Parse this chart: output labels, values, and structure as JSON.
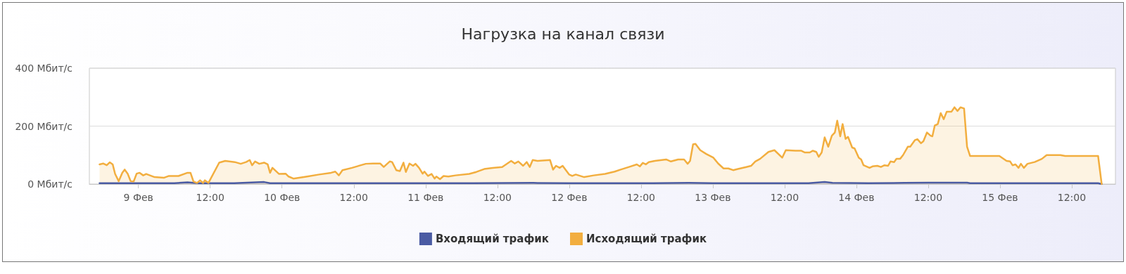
{
  "chart_data": {
    "type": "area",
    "title": "Нагрузка на канал связи",
    "xlim": [
      "--02-08T15:48",
      "--02-15T19:18"
    ],
    "xticks": [
      {
        "value": "--02-09",
        "label": "9 Фев"
      },
      {
        "value": "--02-09T12:00",
        "label": "12:00"
      },
      {
        "value": "--02-10",
        "label": "10 Фев"
      },
      {
        "value": "--02-10T12:00",
        "label": "12:00"
      },
      {
        "value": "--02-11",
        "label": "11 Фев"
      },
      {
        "value": "--02-11T12:00",
        "label": "12:00"
      },
      {
        "value": "--02-12",
        "label": "12 Фев"
      },
      {
        "value": "--02-12T12:00",
        "label": "12:00"
      },
      {
        "value": "--02-13",
        "label": "13 Фев"
      },
      {
        "value": "--02-13T12:00",
        "label": "12:00"
      },
      {
        "value": "--02-14",
        "label": "14 Фев"
      },
      {
        "value": "--02-14T12:00",
        "label": "12:00"
      },
      {
        "value": "--02-15",
        "label": "15 Фев"
      },
      {
        "value": "--02-15T12:00",
        "label": "12:00"
      }
    ],
    "ylim": [
      0,
      400
    ],
    "yticks": [
      {
        "value": 0,
        "label": "0 Мбит/с"
      },
      {
        "value": 200,
        "label": "200 Мбит/с"
      },
      {
        "value": 400,
        "label": "400 Мбит/с"
      }
    ],
    "grid": "y",
    "legend": "bottom",
    "marker": "none",
    "line_style": "solid",
    "series": [
      {
        "name": "Входящий трафик",
        "color": "#4a5ba3",
        "x": [
          "--02-08T17:30",
          "--02-09T00:00",
          "--02-09T06:00",
          "--02-09T08:12",
          "--02-09T10:00",
          "--02-09T16:00",
          "--02-09T21:00",
          "--02-09T22:00",
          "--02-10T04:00",
          "--02-10T12:00",
          "--02-10T22:00",
          "--02-11T08:00",
          "--02-11T18:00",
          "--02-12T00:00",
          "--02-12T08:00",
          "--02-12T14:00",
          "--02-12T20:00",
          "--02-13T00:00",
          "--02-13T08:00",
          "--02-13T16:00",
          "--02-13T18:42",
          "--02-13T20:00",
          "--02-14T02:00",
          "--02-14T08:00",
          "--02-14T12:00",
          "--02-14T16:00",
          "--02-14T18:30",
          "--02-14T19:00",
          "--02-15T02:00",
          "--02-15T10:00",
          "--02-15T16:24",
          "--02-15T17:00"
        ],
        "values": [
          3,
          3,
          3,
          6,
          3,
          3,
          7,
          3,
          3,
          3,
          3,
          3,
          4,
          3,
          3,
          3,
          4,
          3,
          3,
          3,
          7,
          4,
          3,
          4,
          5,
          5,
          5,
          3,
          3,
          3,
          3,
          0
        ]
      },
      {
        "name": "Исходящий трафик",
        "color": "#f2ae3f",
        "x": [
          "--02-08T17:30",
          "--02-08T18:06",
          "--02-08T18:42",
          "--02-08T19:12",
          "--02-08T19:42",
          "--02-08T20:06",
          "--02-08T20:42",
          "--02-08T21:18",
          "--02-08T21:42",
          "--02-08T22:12",
          "--02-08T22:42",
          "--02-08T23:12",
          "--02-08T23:42",
          "--02-09T00:12",
          "--02-09T00:48",
          "--02-09T01:18",
          "--02-09T02:42",
          "--02-09T04:18",
          "--02-09T05:06",
          "--02-09T06:42",
          "--02-09T08:12",
          "--02-09T08:42",
          "--02-09T09:12",
          "--02-09T09:48",
          "--02-09T10:18",
          "--02-09T10:48",
          "--02-09T11:06",
          "--02-09T11:42",
          "--02-09T13:30",
          "--02-09T14:30",
          "--02-09T16:06",
          "--02-09T17:06",
          "--02-09T18:00",
          "--02-09T18:36",
          "--02-09T19:00",
          "--02-09T19:30",
          "--02-09T20:12",
          "--02-09T21:00",
          "--02-09T21:36",
          "--02-09T22:00",
          "--02-09T22:24",
          "--02-09T23:30",
          "--02-10T00:36",
          "--02-10T01:06",
          "--02-10T01:54",
          "--02-10T04:12",
          "--02-10T06:12",
          "--02-10T08:12",
          "--02-10T08:54",
          "--02-10T09:30",
          "--02-10T10:06",
          "--02-10T11:42",
          "--02-10T12:30",
          "--02-10T14:00",
          "--02-10T15:12",
          "--02-10T16:24",
          "--02-10T17:00",
          "--02-10T18:00",
          "--02-10T18:24",
          "--02-10T19:06",
          "--02-10T19:42",
          "--02-10T20:18",
          "--02-10T20:42",
          "--02-10T21:18",
          "--02-10T21:54",
          "--02-10T22:18",
          "--02-10T22:54",
          "--02-10T23:30",
          "--02-10T23:48",
          "--02-11T00:24",
          "--02-11T01:00",
          "--02-11T01:30",
          "--02-11T01:48",
          "--02-11T02:24",
          "--02-11T03:00",
          "--02-11T03:48",
          "--02-11T05:00",
          "--02-11T07:18",
          "--02-11T08:30",
          "--02-11T09:48",
          "--02-11T11:12",
          "--02-11T12:48",
          "--02-11T14:18",
          "--02-11T14:54",
          "--02-11T15:30",
          "--02-11T16:18",
          "--02-11T16:54",
          "--02-11T17:24",
          "--02-11T17:54",
          "--02-11T18:42",
          "--02-11T20:48",
          "--02-11T21:18",
          "--02-11T21:48",
          "--02-11T22:24",
          "--02-11T22:54",
          "--02-12T00:00",
          "--02-12T00:30",
          "--02-12T01:06",
          "--02-12T02:30",
          "--02-12T04:06",
          "--02-12T06:00",
          "--02-12T07:36",
          "--02-12T08:36",
          "--02-12T10:00",
          "--02-12T11:18",
          "--02-12T11:48",
          "--02-12T12:18",
          "--02-12T12:48",
          "--02-12T13:18",
          "--02-12T14:18",
          "--02-12T16:12",
          "--02-12T17:00",
          "--02-12T18:12",
          "--02-12T19:12",
          "--02-12T19:48",
          "--02-12T20:12",
          "--02-12T20:42",
          "--02-12T21:06",
          "--02-12T21:54",
          "--02-12T22:54",
          "--02-13T00:06",
          "--02-13T00:54",
          "--02-13T01:48",
          "--02-13T02:36",
          "--02-13T03:24",
          "--02-13T04:12",
          "--02-13T05:36",
          "--02-13T06:24",
          "--02-13T07:06",
          "--02-13T07:54",
          "--02-13T09:18",
          "--02-13T10:18",
          "--02-13T11:36",
          "--02-13T12:12",
          "--02-13T13:48",
          "--02-13T14:48",
          "--02-13T15:24",
          "--02-13T16:12",
          "--02-13T16:42",
          "--02-13T17:18",
          "--02-13T17:42",
          "--02-13T18:12",
          "--02-13T18:42",
          "--02-13T19:18",
          "--02-13T19:54",
          "--02-13T20:24",
          "--02-13T20:48",
          "--02-13T21:18",
          "--02-13T21:42",
          "--02-13T22:12",
          "--02-13T22:36",
          "--02-13T23:18",
          "--02-13T23:42",
          "--02-14T00:24",
          "--02-14T00:48",
          "--02-14T01:12",
          "--02-14T02:12",
          "--02-14T02:42",
          "--02-14T03:30",
          "--02-14T04:06",
          "--02-14T04:42",
          "--02-14T05:18",
          "--02-14T05:42",
          "--02-14T06:18",
          "--02-14T06:42",
          "--02-14T07:18",
          "--02-14T07:48",
          "--02-14T08:36",
          "--02-14T09:00",
          "--02-14T09:48",
          "--02-14T10:12",
          "--02-14T10:48",
          "--02-14T11:12",
          "--02-14T11:48",
          "--02-14T12:24",
          "--02-14T12:42",
          "--02-14T13:06",
          "--02-14T13:36",
          "--02-14T14:06",
          "--02-14T14:36",
          "--02-14T15:06",
          "--02-14T15:54",
          "--02-14T16:24",
          "--02-14T16:54",
          "--02-14T17:24",
          "--02-14T18:00",
          "--02-14T18:30",
          "--02-14T19:00",
          "--02-14T23:54",
          "--02-15T01:06",
          "--02-15T01:42",
          "--02-15T02:06",
          "--02-15T02:36",
          "--02-15T03:06",
          "--02-15T03:30",
          "--02-15T04:00",
          "--02-15T04:36",
          "--02-15T05:48",
          "--02-15T07:00",
          "--02-15T07:48",
          "--02-15T10:06",
          "--02-15T10:54",
          "--02-15T12:54",
          "--02-15T16:24",
          "--02-15T17:00"
        ],
        "values": [
          68,
          71,
          65,
          75,
          68,
          35,
          10,
          39,
          50,
          36,
          10,
          9,
          36,
          39,
          30,
          35,
          24,
          22,
          28,
          28,
          39,
          39,
          9,
          4,
          13,
          4,
          13,
          4,
          74,
          80,
          76,
          70,
          76,
          83,
          65,
          78,
          70,
          74,
          68,
          39,
          56,
          35,
          36,
          26,
          19,
          26,
          33,
          39,
          43,
          30,
          48,
          56,
          61,
          70,
          71,
          71,
          59,
          78,
          76,
          48,
          45,
          74,
          42,
          71,
          63,
          70,
          56,
          36,
          43,
          28,
          35,
          19,
          26,
          17,
          28,
          26,
          30,
          35,
          42,
          52,
          56,
          59,
          80,
          71,
          78,
          63,
          76,
          59,
          83,
          80,
          83,
          50,
          63,
          56,
          63,
          33,
          28,
          33,
          24,
          30,
          35,
          43,
          50,
          59,
          68,
          61,
          73,
          68,
          76,
          80,
          85,
          78,
          85,
          85,
          70,
          80,
          137,
          139,
          117,
          104,
          91,
          71,
          54,
          54,
          48,
          52,
          59,
          63,
          78,
          87,
          111,
          117,
          91,
          117,
          115,
          115,
          109,
          109,
          115,
          111,
          94,
          109,
          161,
          129,
          167,
          178,
          219,
          165,
          207,
          156,
          163,
          126,
          123,
          91,
          85,
          65,
          56,
          61,
          63,
          59,
          65,
          63,
          78,
          76,
          87,
          87,
          100,
          129,
          129,
          152,
          155,
          141,
          148,
          178,
          167,
          165,
          202,
          207,
          245,
          224,
          250,
          250,
          265,
          252,
          265,
          261,
          129,
          97,
          97,
          80,
          78,
          65,
          68,
          56,
          70,
          56,
          70,
          76,
          87,
          100,
          100,
          97,
          97,
          97,
          0
        ]
      }
    ]
  }
}
